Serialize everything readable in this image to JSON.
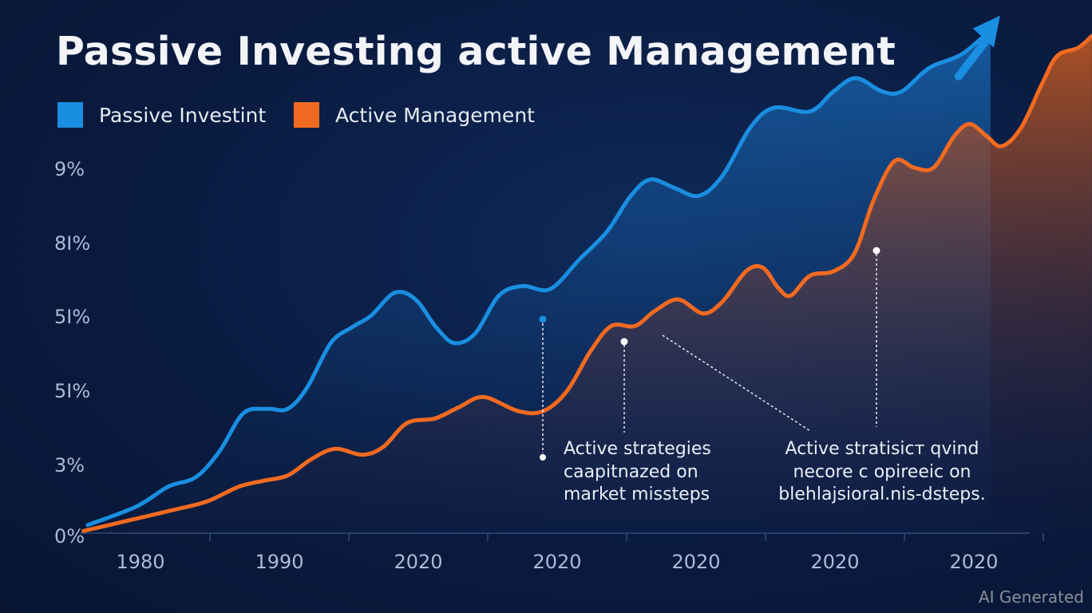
{
  "chart_data": {
    "type": "area",
    "title": "Passive Investing active Management",
    "xlabel": "",
    "ylabel": "",
    "x_tick_labels": [
      "1980",
      "1990",
      "2020",
      "2020",
      "2020",
      "2020",
      "2020"
    ],
    "y_tick_labels": [
      "0%",
      "3%",
      "5I%",
      "5I%",
      "8I%",
      "9%"
    ],
    "x_range_in_tick_index": [
      -0.44,
      6.85
    ],
    "y_range_in_tick_index": [
      0,
      7.2
    ],
    "grid": false,
    "legend_position": "top-left",
    "series": [
      {
        "name": "Passive Investint",
        "color": "#1a8ee0",
        "end_marker": "arrow",
        "points": [
          [
            -0.38,
            0.11
          ],
          [
            -0.03,
            0.36
          ],
          [
            0.2,
            0.63
          ],
          [
            0.4,
            0.76
          ],
          [
            0.57,
            1.11
          ],
          [
            0.74,
            1.62
          ],
          [
            0.91,
            1.68
          ],
          [
            1.06,
            1.68
          ],
          [
            1.2,
            1.97
          ],
          [
            1.37,
            2.57
          ],
          [
            1.52,
            2.78
          ],
          [
            1.66,
            2.94
          ],
          [
            1.83,
            3.25
          ],
          [
            1.98,
            3.16
          ],
          [
            2.13,
            2.78
          ],
          [
            2.26,
            2.57
          ],
          [
            2.41,
            2.7
          ],
          [
            2.58,
            3.21
          ],
          [
            2.75,
            3.34
          ],
          [
            2.95,
            3.3
          ],
          [
            3.16,
            3.7
          ],
          [
            3.36,
            4.08
          ],
          [
            3.53,
            4.56
          ],
          [
            3.67,
            4.78
          ],
          [
            3.84,
            4.67
          ],
          [
            4.02,
            4.56
          ],
          [
            4.19,
            4.83
          ],
          [
            4.39,
            5.48
          ],
          [
            4.56,
            5.75
          ],
          [
            4.82,
            5.7
          ],
          [
            4.99,
            5.97
          ],
          [
            5.15,
            6.15
          ],
          [
            5.34,
            5.97
          ],
          [
            5.48,
            5.97
          ],
          [
            5.68,
            6.29
          ],
          [
            5.91,
            6.47
          ],
          [
            6.12,
            6.8
          ]
        ]
      },
      {
        "name": "Active Management",
        "color": "#f26a21",
        "points": [
          [
            -0.41,
            0.03
          ],
          [
            -0.09,
            0.17
          ],
          [
            0.25,
            0.32
          ],
          [
            0.48,
            0.43
          ],
          [
            0.71,
            0.63
          ],
          [
            0.89,
            0.71
          ],
          [
            1.06,
            0.78
          ],
          [
            1.23,
            1.0
          ],
          [
            1.4,
            1.14
          ],
          [
            1.6,
            1.06
          ],
          [
            1.75,
            1.17
          ],
          [
            1.92,
            1.49
          ],
          [
            2.12,
            1.55
          ],
          [
            2.29,
            1.7
          ],
          [
            2.47,
            1.84
          ],
          [
            2.72,
            1.65
          ],
          [
            2.9,
            1.65
          ],
          [
            3.07,
            1.92
          ],
          [
            3.24,
            2.46
          ],
          [
            3.39,
            2.8
          ],
          [
            3.56,
            2.8
          ],
          [
            3.7,
            3.0
          ],
          [
            3.87,
            3.16
          ],
          [
            4.05,
            2.97
          ],
          [
            4.19,
            3.13
          ],
          [
            4.36,
            3.54
          ],
          [
            4.48,
            3.59
          ],
          [
            4.59,
            3.32
          ],
          [
            4.68,
            3.21
          ],
          [
            4.82,
            3.48
          ],
          [
            4.99,
            3.54
          ],
          [
            5.14,
            3.78
          ],
          [
            5.28,
            4.51
          ],
          [
            5.43,
            5.03
          ],
          [
            5.57,
            4.94
          ],
          [
            5.71,
            4.94
          ],
          [
            5.86,
            5.37
          ],
          [
            5.97,
            5.53
          ],
          [
            6.09,
            5.37
          ],
          [
            6.2,
            5.23
          ],
          [
            6.34,
            5.48
          ],
          [
            6.49,
            6.07
          ],
          [
            6.6,
            6.45
          ],
          [
            6.75,
            6.56
          ],
          [
            6.85,
            6.72
          ]
        ]
      }
    ],
    "annotations": [
      {
        "text_lines": [
          "Active strategies",
          "caapitnazed on",
          "market missteps"
        ]
      },
      {
        "text_lines": [
          "Active stratisicт qvind",
          "necore c opireeic on",
          "blehlajsioral.nis-dsteps."
        ]
      }
    ]
  },
  "legend": {
    "items": [
      {
        "label": "Passive Investint",
        "color": "#1a8ee0"
      },
      {
        "label": "Active Management",
        "color": "#f26a21"
      }
    ]
  },
  "watermark": "AI Generated"
}
